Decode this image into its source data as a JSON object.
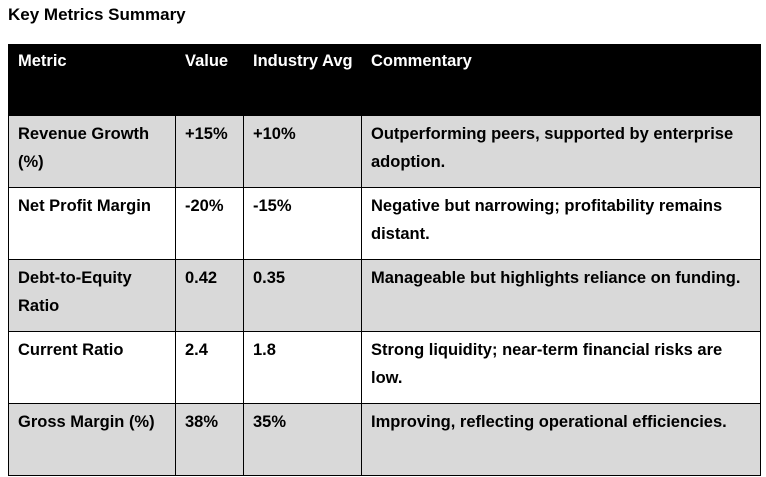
{
  "title": "Key Metrics Summary",
  "columns": [
    "Metric",
    "Value",
    "Industry Avg",
    "Commentary"
  ],
  "rows": [
    {
      "metric": "Revenue Growth (%)",
      "value": "+15%",
      "industry_avg": "+10%",
      "commentary": "Outperforming peers, supported by enterprise adoption."
    },
    {
      "metric": "Net Profit Margin",
      "value": "-20%",
      "industry_avg": "-15%",
      "commentary": "Negative but narrowing; profitability remains distant."
    },
    {
      "metric": "Debt-to-Equity Ratio",
      "value": "0.42",
      "industry_avg": "0.35",
      "commentary": "Manageable but highlights reliance on funding."
    },
    {
      "metric": "Current Ratio",
      "value": "2.4",
      "industry_avg": "1.8",
      "commentary": "Strong liquidity; near-term financial risks are low."
    },
    {
      "metric": "Gross Margin (%)",
      "value": "38%",
      "industry_avg": "35%",
      "commentary": "Improving, reflecting operational efficiencies."
    }
  ],
  "colors": {
    "header_bg": "#000000",
    "header_text": "#ffffff",
    "shaded_row": "#d9d9d9",
    "plain_row": "#ffffff"
  }
}
